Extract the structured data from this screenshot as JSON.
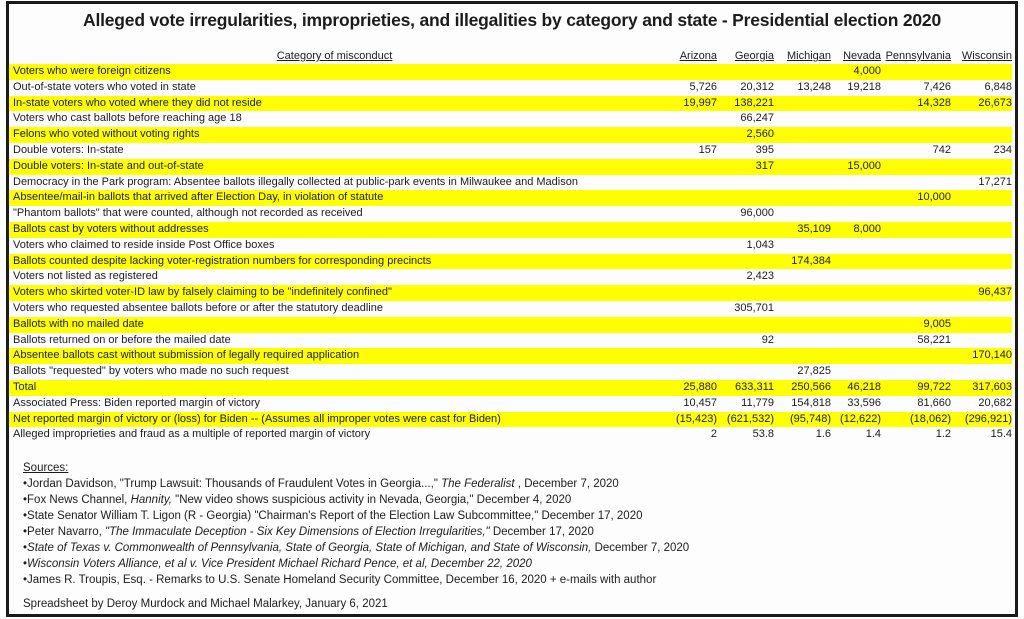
{
  "colors": {
    "highlight": "#ffff00",
    "border": "#1a1a1a",
    "text": "#1c1c1c",
    "background": "#fdfdfd"
  },
  "header": {
    "title": "Alleged vote irregularities, improprieties, and illegalities by category and state - Presidential election 2020"
  },
  "table": {
    "category_header": "Category of misconduct",
    "state_headers": [
      "Arizona",
      "Georgia",
      "Michigan",
      "Nevada",
      "Pennsylvania",
      "Wisconsin"
    ],
    "rows": [
      {
        "label": "Voters who were foreign citizens",
        "highlight": true,
        "values": [
          "",
          "",
          "",
          "4,000",
          "",
          ""
        ]
      },
      {
        "label": "Out-of-state voters who voted in state",
        "highlight": false,
        "values": [
          "5,726",
          "20,312",
          "13,248",
          "19,218",
          "7,426",
          "6,848"
        ]
      },
      {
        "label": "In-state voters who voted where they did not reside",
        "highlight": true,
        "values": [
          "19,997",
          "138,221",
          "",
          "",
          "14,328",
          "26,673"
        ]
      },
      {
        "label": "Voters who cast ballots before reaching age 18",
        "highlight": false,
        "values": [
          "",
          "66,247",
          "",
          "",
          "",
          ""
        ]
      },
      {
        "label": "Felons who voted without voting rights",
        "highlight": true,
        "values": [
          "",
          "2,560",
          "",
          "",
          "",
          ""
        ]
      },
      {
        "label": "Double voters: In-state",
        "highlight": false,
        "values": [
          "157",
          "395",
          "",
          "",
          "742",
          "234"
        ]
      },
      {
        "label": "Double voters: In-state and out-of-state",
        "highlight": true,
        "values": [
          "",
          "317",
          "",
          "15,000",
          "",
          ""
        ]
      },
      {
        "label": "Democracy in the Park program: Absentee ballots illegally collected at public-park events in Milwaukee and Madison",
        "highlight": false,
        "values": [
          "",
          "",
          "",
          "",
          "",
          "17,271"
        ]
      },
      {
        "label": "Absentee/mail-in ballots that arrived after Election Day, in violation of statute",
        "highlight": true,
        "values": [
          "",
          "",
          "",
          "",
          "10,000",
          ""
        ]
      },
      {
        "label": "\"Phantom ballots\" that were counted, although not recorded as received",
        "highlight": false,
        "values": [
          "",
          "96,000",
          "",
          "",
          "",
          ""
        ]
      },
      {
        "label": "Ballots cast by voters without addresses",
        "highlight": true,
        "values": [
          "",
          "",
          "35,109",
          "8,000",
          "",
          ""
        ]
      },
      {
        "label": "Voters who claimed to reside inside Post Office boxes",
        "highlight": false,
        "values": [
          "",
          "1,043",
          "",
          "",
          "",
          ""
        ]
      },
      {
        "label": "Ballots counted despite lacking voter-registration numbers for corresponding precincts",
        "highlight": true,
        "values": [
          "",
          "",
          "174,384",
          "",
          "",
          ""
        ]
      },
      {
        "label": "Voters not listed as registered",
        "highlight": false,
        "values": [
          "",
          "2,423",
          "",
          "",
          "",
          ""
        ]
      },
      {
        "label": "Voters who skirted voter-ID law by falsely claiming to be \"indefinitely confined\"",
        "highlight": true,
        "values": [
          "",
          "",
          "",
          "",
          "",
          "96,437"
        ]
      },
      {
        "label": "Voters who requested absentee ballots before or after the statutory deadline",
        "highlight": false,
        "values": [
          "",
          "305,701",
          "",
          "",
          "",
          ""
        ]
      },
      {
        "label": "Ballots with no mailed date",
        "highlight": true,
        "values": [
          "",
          "",
          "",
          "",
          "9,005",
          ""
        ]
      },
      {
        "label": "Ballots returned on or before the mailed date",
        "highlight": false,
        "values": [
          "",
          "92",
          "",
          "",
          "58,221",
          ""
        ]
      },
      {
        "label": "Absentee ballots cast without submission of legally required application",
        "highlight": true,
        "values": [
          "",
          "",
          "",
          "",
          "",
          "170,140"
        ]
      },
      {
        "label": "Ballots \"requested\" by voters who made no such request",
        "highlight": false,
        "values": [
          "",
          "",
          "27,825",
          "",
          "",
          ""
        ]
      },
      {
        "label": "Total",
        "highlight": true,
        "values": [
          "25,880",
          "633,311",
          "250,566",
          "46,218",
          "99,722",
          "317,603"
        ]
      },
      {
        "label": "Associated Press: Biden reported margin of victory",
        "highlight": false,
        "values": [
          "10,457",
          "11,779",
          "154,818",
          "33,596",
          "81,660",
          "20,682"
        ]
      },
      {
        "label": "Net reported margin of victory or (loss) for Biden -- (Assumes all improper votes were cast for Biden)",
        "highlight": true,
        "values": [
          "(15,423)",
          "(621,532)",
          "(95,748)",
          "(12,622)",
          "(18,062)",
          "(296,921)"
        ]
      },
      {
        "label": "Alleged improprieties and fraud as a multiple of reported margin of victory",
        "highlight": false,
        "values": [
          "2",
          "53.8",
          "1.6",
          "1.4",
          "1.2",
          "15.4"
        ]
      }
    ]
  },
  "sources": {
    "heading": "Sources:",
    "items": [
      {
        "segments": [
          {
            "text": "•Jordan Davidson, \"Trump Lawsuit: Thousands of Fraudulent Votes in Georgia...,\" ",
            "italic": false
          },
          {
            "text": "The Federalist ",
            "italic": true
          },
          {
            "text": ", December 7, 2020",
            "italic": false
          }
        ]
      },
      {
        "segments": [
          {
            "text": "•Fox News Channel, ",
            "italic": false
          },
          {
            "text": "Hannity, ",
            "italic": true
          },
          {
            "text": " \"New video shows suspicious activity in Nevada, Georgia,\" December 4, 2020",
            "italic": false
          }
        ]
      },
      {
        "segments": [
          {
            "text": "•State Senator William T. Ligon (R - Georgia) \"Chairman's Report of the Election Law Subcommittee,\" December 17, 2020",
            "italic": false
          }
        ]
      },
      {
        "segments": [
          {
            "text": "•Peter Navarro, ",
            "italic": false
          },
          {
            "text": "\"The Immaculate Deception - Six Key Dimensions of Election Irregularities,\" ",
            "italic": true
          },
          {
            "text": " December 17, 2020",
            "italic": false
          }
        ]
      },
      {
        "segments": [
          {
            "text": "•",
            "italic": false
          },
          {
            "text": "State of Texas v. Commonwealth of Pennsylvania, State of Georgia, State of Michigan, and State of Wisconsin, ",
            "italic": true
          },
          {
            "text": " December 7, 2020",
            "italic": false
          }
        ]
      },
      {
        "segments": [
          {
            "text": "•",
            "italic": false
          },
          {
            "text": "Wisconsin Voters Alliance, et al v. Vice President Michael Richard Pence, et al, December 22, 2020",
            "italic": true
          }
        ]
      },
      {
        "segments": [
          {
            "text": "•James R. Troupis, Esq. - Remarks to U.S. Senate Homeland Security Committee, December 16, 2020 + e-mails with author",
            "italic": false
          }
        ]
      }
    ],
    "credit": "Spreadsheet by Deroy Murdock and Michael Malarkey, January 6, 2021"
  }
}
